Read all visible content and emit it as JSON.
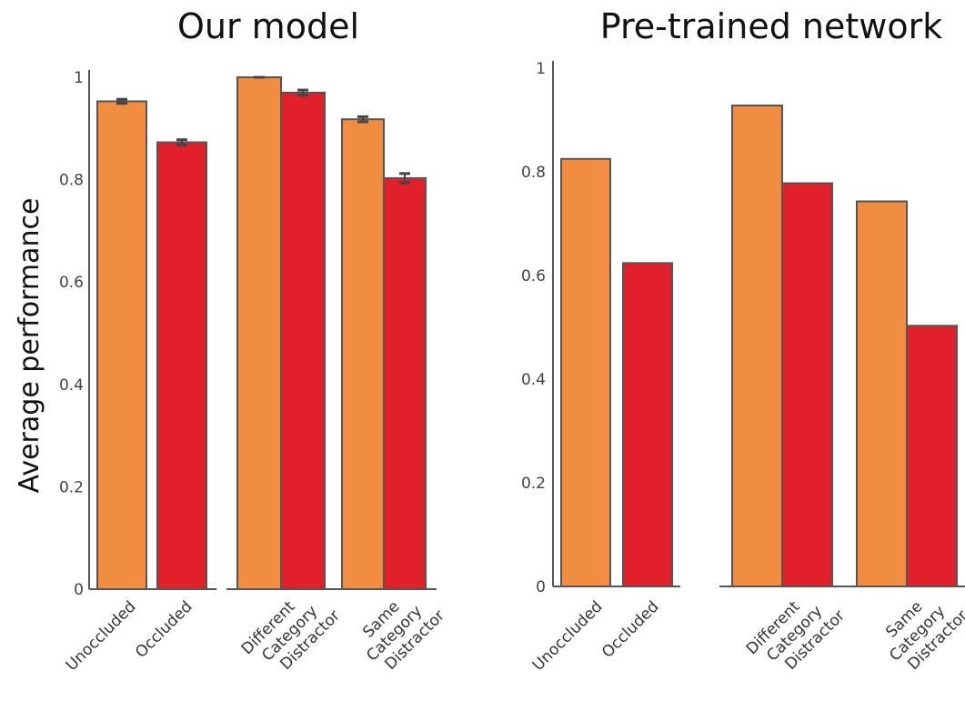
{
  "colors": {
    "unoccluded": "#f28c40",
    "occluded": "#e2202a"
  },
  "chart_data": [
    {
      "type": "bar",
      "title": "Our model",
      "ylabel": "Average performance",
      "ylim": [
        0,
        1
      ],
      "yticks": [
        "0",
        "0.2",
        "0.4",
        "0.6",
        "0.8",
        "1"
      ],
      "yticks_values": [
        0,
        0.2,
        0.4,
        0.6,
        0.8,
        1
      ],
      "categories": [
        "Unoccluded",
        "Occluded",
        "Different Category Distractor",
        "Same Category Distractor"
      ],
      "groups": [
        {
          "labels": [
            "Unoccluded",
            "Occluded"
          ],
          "bars": [
            {
              "value": 0.953,
              "error": 0.004,
              "color_key": "unoccluded"
            },
            {
              "value": 0.873,
              "error": 0.005,
              "color_key": "occluded"
            }
          ]
        },
        {
          "labels": [
            "Different Category Distractor"
          ],
          "bars": [
            {
              "value": 1.0,
              "error": 0.0,
              "color_key": "unoccluded"
            },
            {
              "value": 0.97,
              "error": 0.005,
              "color_key": "occluded"
            }
          ]
        },
        {
          "labels": [
            "Same Category Distractor"
          ],
          "bars": [
            {
              "value": 0.918,
              "error": 0.005,
              "color_key": "unoccluded"
            },
            {
              "value": 0.803,
              "error": 0.009,
              "color_key": "occluded"
            }
          ]
        }
      ],
      "grid": false
    },
    {
      "type": "bar",
      "title": "Pre-trained network",
      "ylabel": "",
      "ylim": [
        0,
        1
      ],
      "yticks": [
        "0",
        "0.2",
        "0.4",
        "0.6",
        "0.8",
        "1"
      ],
      "yticks_values": [
        0,
        0.2,
        0.4,
        0.6,
        0.8,
        1
      ],
      "categories": [
        "Unoccluded",
        "Occluded",
        "Different Category Distractor",
        "Same Category Distractor"
      ],
      "groups": [
        {
          "labels": [
            "Unoccluded",
            "Occluded"
          ],
          "bars": [
            {
              "value": 0.825,
              "color_key": "unoccluded"
            },
            {
              "value": 0.624,
              "color_key": "occluded"
            }
          ]
        },
        {
          "labels": [
            "Different Category Distractor"
          ],
          "bars": [
            {
              "value": 0.928,
              "color_key": "unoccluded"
            },
            {
              "value": 0.778,
              "color_key": "occluded"
            }
          ]
        },
        {
          "labels": [
            "Same Category Distractor"
          ],
          "bars": [
            {
              "value": 0.743,
              "color_key": "unoccluded"
            },
            {
              "value": 0.503,
              "color_key": "occluded"
            }
          ]
        }
      ],
      "grid": false
    }
  ]
}
